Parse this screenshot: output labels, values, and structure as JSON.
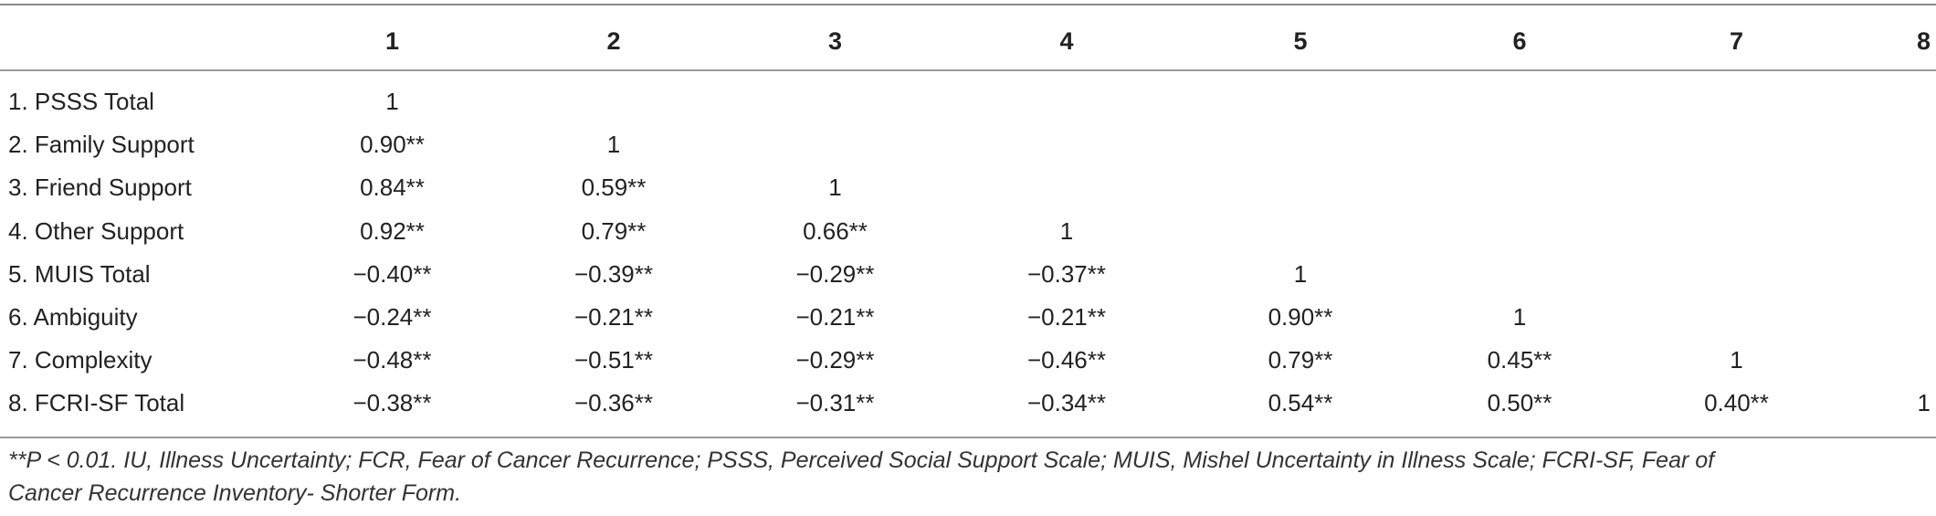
{
  "table": {
    "columns": [
      "",
      "1",
      "2",
      "3",
      "4",
      "5",
      "6",
      "7",
      "8"
    ],
    "rows": [
      {
        "label": "1. PSSS Total",
        "values": [
          "1",
          "",
          "",
          "",
          "",
          "",
          "",
          ""
        ]
      },
      {
        "label": "2. Family Support",
        "values": [
          "0.90**",
          "1",
          "",
          "",
          "",
          "",
          "",
          ""
        ]
      },
      {
        "label": "3. Friend Support",
        "values": [
          "0.84**",
          "0.59**",
          "1",
          "",
          "",
          "",
          "",
          ""
        ]
      },
      {
        "label": "4. Other Support",
        "values": [
          "0.92**",
          "0.79**",
          "0.66**",
          "1",
          "",
          "",
          "",
          ""
        ]
      },
      {
        "label": "5. MUIS Total",
        "values": [
          "−0.40**",
          "−0.39**",
          "−0.29**",
          "−0.37**",
          "1",
          "",
          "",
          ""
        ]
      },
      {
        "label": "6. Ambiguity",
        "values": [
          "−0.24**",
          "−0.21**",
          "−0.21**",
          "−0.21**",
          "0.90**",
          "1",
          "",
          ""
        ]
      },
      {
        "label": "7. Complexity",
        "values": [
          "−0.48**",
          "−0.51**",
          "−0.29**",
          "−0.46**",
          "0.79**",
          "0.45**",
          "1",
          ""
        ]
      },
      {
        "label": "8. FCRI-SF Total",
        "values": [
          "−0.38**",
          "−0.36**",
          "−0.31**",
          "−0.34**",
          "0.54**",
          "0.50**",
          "0.40**",
          "1"
        ]
      }
    ]
  },
  "footnote": {
    "line1": "**P < 0.01. IU, Illness Uncertainty; FCR, Fear of Cancer Recurrence; PSSS, Perceived Social Support Scale; MUIS, Mishel Uncertainty in Illness Scale; FCRI-SF, Fear of",
    "line2": "Cancer Recurrence Inventory- Shorter Form."
  }
}
